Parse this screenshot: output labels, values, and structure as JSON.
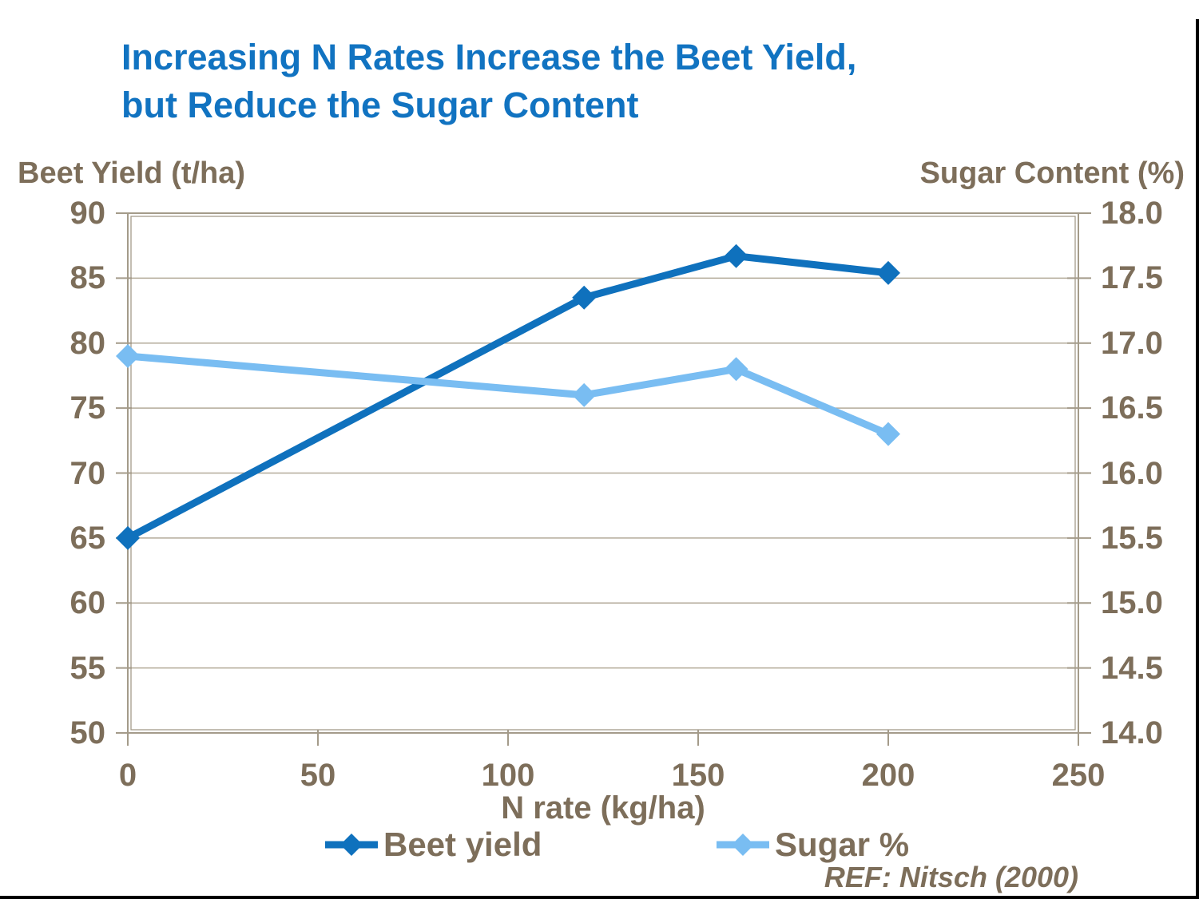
{
  "chart_data": {
    "type": "line",
    "title_lines": [
      "Increasing N Rates Increase the Beet Yield,",
      "but Reduce the Sugar Content"
    ],
    "x": [
      0,
      120,
      160,
      200
    ],
    "series": [
      {
        "name": "Beet yield",
        "axis": "left",
        "color": "#0F71BD",
        "values": [
          65,
          83.5,
          86.7,
          85.4
        ]
      },
      {
        "name": "Sugar %",
        "axis": "right",
        "color": "#79BDF2",
        "values": [
          16.9,
          16.6,
          16.8,
          16.3
        ]
      }
    ],
    "x_axis": {
      "title": "N rate (kg/ha)",
      "min": 0,
      "max": 250,
      "ticks": [
        0,
        50,
        100,
        150,
        200,
        250
      ]
    },
    "left_axis": {
      "title": "Beet Yield (t/ha)",
      "min": 50,
      "max": 90,
      "ticks": [
        "90",
        "85",
        "80",
        "75",
        "70",
        "65",
        "60",
        "55",
        "50"
      ]
    },
    "right_axis": {
      "title": "Sugar Content (%)",
      "min": 14,
      "max": 18,
      "ticks": [
        "18.0",
        "17.5",
        "17.0",
        "16.5",
        "16.0",
        "15.5",
        "15.0",
        "14.5",
        "14.0"
      ]
    },
    "grid": "horizontal",
    "legend_position": "bottom",
    "ref": "REF: Nitsch (2000)"
  },
  "colors": {
    "title": "#1173C1",
    "text": "#7D6E5A",
    "grid": "#B3AA99",
    "axis": "#A49B8A",
    "beet": "#0F71BD",
    "sugar": "#79BDF2"
  }
}
